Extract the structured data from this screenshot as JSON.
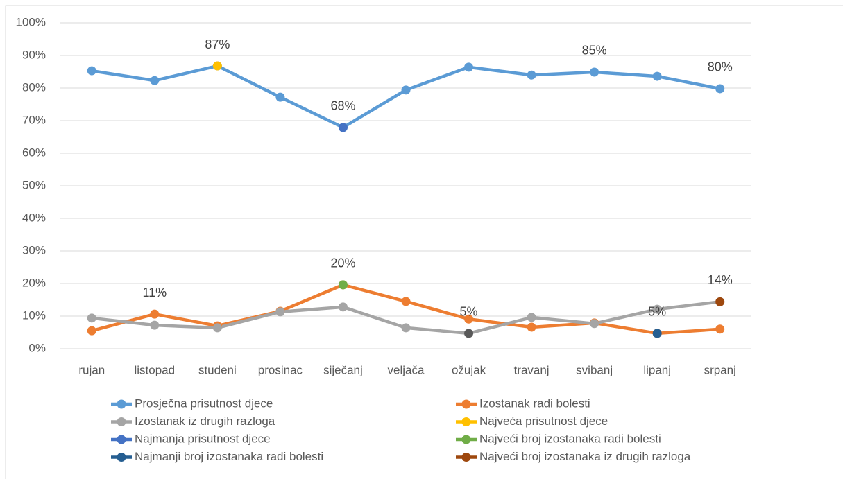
{
  "chart_data": {
    "type": "line",
    "categories": [
      "rujan",
      "listopad",
      "studeni",
      "prosinac",
      "siječanj",
      "veljača",
      "ožujak",
      "travanj",
      "svibanj",
      "lipanj",
      "srpanj"
    ],
    "ylim": [
      0,
      100
    ],
    "yticks": [
      {
        "value": 0,
        "label": "0%"
      },
      {
        "value": 10,
        "label": "10%"
      },
      {
        "value": 20,
        "label": "20%"
      },
      {
        "value": 30,
        "label": "30%"
      },
      {
        "value": 40,
        "label": "40%"
      },
      {
        "value": 50,
        "label": "50%"
      },
      {
        "value": 60,
        "label": "60%"
      },
      {
        "value": 70,
        "label": "70%"
      },
      {
        "value": 80,
        "label": "80%"
      },
      {
        "value": 90,
        "label": "90%"
      },
      {
        "value": 100,
        "label": "100%"
      }
    ],
    "grid": true,
    "legend": "bottom",
    "series": [
      {
        "name": "Prosječna prisutnost djece",
        "color": "#5b9bd5",
        "values": [
          85.3,
          82.3,
          86.8,
          77.2,
          67.9,
          79.4,
          86.4,
          84.0,
          84.9,
          83.6,
          79.8
        ],
        "value_labels": [
          null,
          null,
          null,
          null,
          null,
          null,
          null,
          null,
          "85%",
          null,
          "80%"
        ]
      },
      {
        "name": "Izostanak radi bolesti",
        "color": "#ed7d31",
        "values": [
          5.5,
          10.6,
          7.0,
          11.5,
          19.6,
          14.5,
          9.1,
          6.6,
          7.9,
          4.7,
          6.0
        ],
        "value_labels": [
          null,
          "11%",
          null,
          null,
          null,
          null,
          null,
          null,
          null,
          null,
          null
        ]
      },
      {
        "name": "Izostanak iz drugih razloga",
        "color": "#a5a5a5",
        "values": [
          9.4,
          7.2,
          6.4,
          11.3,
          12.8,
          6.4,
          4.7,
          9.6,
          7.7,
          12.1,
          14.4
        ],
        "value_labels": [
          null,
          null,
          null,
          null,
          null,
          null,
          "5%",
          null,
          null,
          null,
          null
        ],
        "point_colors": [
          null,
          null,
          null,
          null,
          null,
          null,
          "#595959",
          null,
          null,
          null,
          null
        ]
      },
      {
        "name": "Najveća prisutnost djece",
        "color": "#ffc000",
        "values": [
          null,
          null,
          86.8,
          null,
          null,
          null,
          null,
          null,
          null,
          null,
          null
        ],
        "value_labels": [
          null,
          null,
          "87%",
          null,
          null,
          null,
          null,
          null,
          null,
          null,
          null
        ]
      },
      {
        "name": "Najmanja prisutnost djece",
        "color": "#4472c4",
        "values": [
          null,
          null,
          null,
          null,
          67.9,
          null,
          null,
          null,
          null,
          null,
          null
        ],
        "value_labels": [
          null,
          null,
          null,
          null,
          "68%",
          null,
          null,
          null,
          null,
          null,
          null
        ]
      },
      {
        "name": "Najveći broj izostanaka radi bolesti",
        "color": "#70ad47",
        "values": [
          null,
          null,
          null,
          null,
          19.6,
          null,
          null,
          null,
          null,
          null,
          null
        ],
        "value_labels": [
          null,
          null,
          null,
          null,
          "20%",
          null,
          null,
          null,
          null,
          null,
          null
        ]
      },
      {
        "name": "Najmanji broj izostanaka radi bolesti",
        "color": "#255e91",
        "values": [
          null,
          null,
          null,
          null,
          null,
          null,
          null,
          null,
          null,
          4.7,
          null
        ],
        "value_labels": [
          null,
          null,
          null,
          null,
          null,
          null,
          null,
          null,
          null,
          "5%",
          null
        ]
      },
      {
        "name": "Najveći broj izostanaka iz drugih razloga",
        "color": "#9e480e",
        "values": [
          null,
          null,
          null,
          null,
          null,
          null,
          null,
          null,
          null,
          null,
          14.4
        ],
        "value_labels": [
          null,
          null,
          null,
          null,
          null,
          null,
          null,
          null,
          null,
          null,
          "14%"
        ]
      }
    ]
  }
}
